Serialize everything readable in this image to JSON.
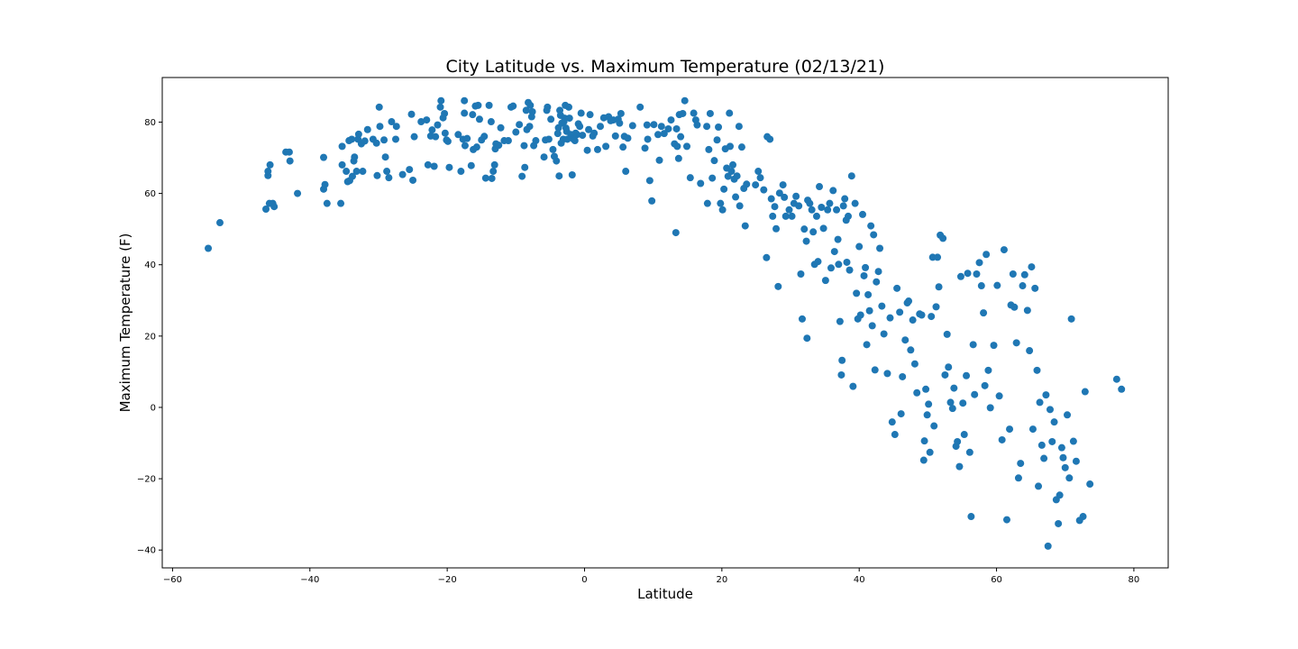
{
  "chart_data": {
    "type": "scatter",
    "title": "City Latitude vs. Maximum Temperature (02/13/21)",
    "xlabel": "Latitude",
    "ylabel": "Maximum Temperature (F)",
    "xlim": [
      -61.5,
      85
    ],
    "ylim": [
      -45,
      92.5
    ],
    "xticks": [
      -60,
      -40,
      -20,
      0,
      20,
      40,
      60,
      80
    ],
    "yticks": [
      -40,
      -20,
      0,
      20,
      40,
      60,
      80
    ],
    "xtick_labels": [
      "−60",
      "−40",
      "−20",
      "0",
      "20",
      "40",
      "60",
      "80"
    ],
    "ytick_labels": [
      "−40",
      "−20",
      "0",
      "20",
      "40",
      "60",
      "80"
    ],
    "grid": false,
    "marker_color": "#1f77b4",
    "points": [
      [
        -54.8,
        44.6
      ],
      [
        -53.1,
        51.8
      ],
      [
        -46.4,
        55.6
      ],
      [
        -46.1,
        65
      ],
      [
        -46.1,
        66.2
      ],
      [
        -45.9,
        57.2
      ],
      [
        -45.8,
        68
      ],
      [
        -45.4,
        57.2
      ],
      [
        -45.2,
        56.3
      ],
      [
        -43.5,
        71.6
      ],
      [
        -43,
        71.6
      ],
      [
        -42.9,
        69.1
      ],
      [
        -41.8,
        60
      ],
      [
        -38,
        61.2
      ],
      [
        -38,
        70.1
      ],
      [
        -37.8,
        62.5
      ],
      [
        -37.5,
        57.2
      ],
      [
        -35.5,
        57.2
      ],
      [
        -35.3,
        68
      ],
      [
        -35.3,
        73.2
      ],
      [
        -34.7,
        66.2
      ],
      [
        -34.5,
        63.3
      ],
      [
        -34.3,
        74.8
      ],
      [
        -34.2,
        63.6
      ],
      [
        -33.9,
        75.2
      ],
      [
        -33.8,
        64.8
      ],
      [
        -33.6,
        69.1
      ],
      [
        -33.5,
        70.2
      ],
      [
        -33.2,
        66.2
      ],
      [
        -33,
        75.2
      ],
      [
        -32.9,
        76.6
      ],
      [
        -32.5,
        73.9
      ],
      [
        -32.3,
        66.2
      ],
      [
        -32,
        74.7
      ],
      [
        -31.6,
        77.9
      ],
      [
        -30.8,
        75.2
      ],
      [
        -30.3,
        74.1
      ],
      [
        -30.2,
        65
      ],
      [
        -29.9,
        84.2
      ],
      [
        -29.8,
        78.8
      ],
      [
        -29.2,
        75
      ],
      [
        -29,
        70.2
      ],
      [
        -28.8,
        66.2
      ],
      [
        -28.5,
        64.4
      ],
      [
        -28.1,
        80.1
      ],
      [
        -27.5,
        75.2
      ],
      [
        -27.4,
        78.8
      ],
      [
        -26.5,
        65.3
      ],
      [
        -25.5,
        66.7
      ],
      [
        -25.2,
        82.2
      ],
      [
        -25,
        63.7
      ],
      [
        -24.8,
        75.9
      ],
      [
        -23.8,
        80.1
      ],
      [
        -23,
        80.6
      ],
      [
        -22.8,
        68
      ],
      [
        -22.4,
        76.1
      ],
      [
        -22.2,
        77.8
      ],
      [
        -21.9,
        67.6
      ],
      [
        -21.7,
        75.9
      ],
      [
        -21.4,
        79.2
      ],
      [
        -21,
        84.2
      ],
      [
        -20.9,
        86
      ],
      [
        -20.6,
        81.2
      ],
      [
        -20.4,
        82.4
      ],
      [
        -20.3,
        76.9
      ],
      [
        -20.1,
        75
      ],
      [
        -19.9,
        74.6
      ],
      [
        -19.7,
        67.3
      ],
      [
        -18.4,
        76.5
      ],
      [
        -18,
        66.2
      ],
      [
        -17.7,
        75.2
      ],
      [
        -17.5,
        86
      ],
      [
        -17.5,
        82.5
      ],
      [
        -17.4,
        73.4
      ],
      [
        -17.1,
        75.4
      ],
      [
        -16.5,
        67.8
      ],
      [
        -16.3,
        82.1
      ],
      [
        -16.2,
        72.3
      ],
      [
        -15.9,
        84.5
      ],
      [
        -15.7,
        73
      ],
      [
        -15.5,
        84.7
      ],
      [
        -15.3,
        80.8
      ],
      [
        -15,
        75
      ],
      [
        -14.6,
        76
      ],
      [
        -14.4,
        64.3
      ],
      [
        -13.9,
        84.7
      ],
      [
        -13.6,
        80.1
      ],
      [
        -13.5,
        64.2
      ],
      [
        -13.3,
        66.2
      ],
      [
        -13.1,
        68
      ],
      [
        -13,
        72.5
      ],
      [
        -12.9,
        73.9
      ],
      [
        -12.5,
        73.5
      ],
      [
        -12.2,
        78.4
      ],
      [
        -11.7,
        74.8
      ],
      [
        -11.1,
        74.8
      ],
      [
        -10.7,
        84.2
      ],
      [
        -10.4,
        84.5
      ],
      [
        -10,
        77.2
      ],
      [
        -9.5,
        79.3
      ],
      [
        -9.1,
        64.8
      ],
      [
        -8.8,
        73.4
      ],
      [
        -8.7,
        67.3
      ],
      [
        -8.5,
        83.3
      ],
      [
        -8.4,
        77.9
      ],
      [
        -8.2,
        85.5
      ],
      [
        -8,
        78.8
      ],
      [
        -7.9,
        84.7
      ],
      [
        -7.7,
        81.5
      ],
      [
        -7.6,
        82.9
      ],
      [
        -7.4,
        73.4
      ],
      [
        -7.1,
        74.8
      ],
      [
        -5.9,
        70.2
      ],
      [
        -5.7,
        75
      ],
      [
        -5.5,
        83.3
      ],
      [
        -5.4,
        84.2
      ],
      [
        -5.2,
        75.2
      ],
      [
        -4.9,
        80.8
      ],
      [
        -4.6,
        72.3
      ],
      [
        -4.4,
        70.4
      ],
      [
        -4.1,
        69.1
      ],
      [
        -3.9,
        76.8
      ],
      [
        -3.8,
        78.4
      ],
      [
        -3.7,
        64.9
      ],
      [
        -3.6,
        83.3
      ],
      [
        -3.5,
        81.9
      ],
      [
        -3.4,
        74.1
      ],
      [
        -3.3,
        79.7
      ],
      [
        -3.1,
        75.2
      ],
      [
        -3,
        80.1
      ],
      [
        -2.9,
        81.1
      ],
      [
        -2.8,
        84.7
      ],
      [
        -2.7,
        78.3
      ],
      [
        -2.6,
        77.4
      ],
      [
        -2.5,
        75.2
      ],
      [
        -2.3,
        84.2
      ],
      [
        -2.2,
        81.1
      ],
      [
        -2,
        76.5
      ],
      [
        -1.8,
        65.2
      ],
      [
        -1.6,
        75.2
      ],
      [
        -1.4,
        74.8
      ],
      [
        -1.3,
        76.9
      ],
      [
        -1.1,
        76.5
      ],
      [
        -0.9,
        79.5
      ],
      [
        -0.7,
        78.8
      ],
      [
        -0.5,
        82.5
      ],
      [
        -0.3,
        76.3
      ],
      [
        0.4,
        72.1
      ],
      [
        0.6,
        77.9
      ],
      [
        0.8,
        82.1
      ],
      [
        1.2,
        76.1
      ],
      [
        1.4,
        76.9
      ],
      [
        1.9,
        72.3
      ],
      [
        2.3,
        78.8
      ],
      [
        2.8,
        81.2
      ],
      [
        3.1,
        73.2
      ],
      [
        3.5,
        81.5
      ],
      [
        3.8,
        80.4
      ],
      [
        4.2,
        80.6
      ],
      [
        4.5,
        76.1
      ],
      [
        4.9,
        80.8
      ],
      [
        5.1,
        79.7
      ],
      [
        5.3,
        82.4
      ],
      [
        5.6,
        73
      ],
      [
        5.8,
        76
      ],
      [
        6,
        66.2
      ],
      [
        6.3,
        75.5
      ],
      [
        7,
        79
      ],
      [
        8.1,
        84.2
      ],
      [
        8.8,
        72.7
      ],
      [
        9.1,
        79.2
      ],
      [
        9.2,
        75.2
      ],
      [
        9.5,
        63.6
      ],
      [
        9.8,
        57.9
      ],
      [
        10.1,
        79.3
      ],
      [
        10.7,
        76.5
      ],
      [
        10.9,
        69.3
      ],
      [
        11.2,
        78.8
      ],
      [
        11.6,
        76.8
      ],
      [
        12.2,
        78.1
      ],
      [
        12.6,
        80.6
      ],
      [
        13.1,
        73.9
      ],
      [
        13.3,
        49
      ],
      [
        13.4,
        78.1
      ],
      [
        13.5,
        73.2
      ],
      [
        13.7,
        69.8
      ],
      [
        13.8,
        82.1
      ],
      [
        14,
        75.9
      ],
      [
        14.3,
        82.4
      ],
      [
        14.6,
        86
      ],
      [
        14.9,
        73.2
      ],
      [
        15.4,
        64.4
      ],
      [
        15.9,
        82.5
      ],
      [
        16.2,
        80.6
      ],
      [
        16.4,
        79.2
      ],
      [
        16.9,
        62.8
      ],
      [
        17.8,
        78.8
      ],
      [
        17.9,
        57.2
      ],
      [
        18.1,
        72.3
      ],
      [
        18.3,
        82.4
      ],
      [
        18.6,
        64.3
      ],
      [
        18.9,
        69.2
      ],
      [
        19.3,
        75
      ],
      [
        19.5,
        78.6
      ],
      [
        19.8,
        57.2
      ],
      [
        20.1,
        55.4
      ],
      [
        20.3,
        61.2
      ],
      [
        20.5,
        72.5
      ],
      [
        20.7,
        67.1
      ],
      [
        20.9,
        64.8
      ],
      [
        21.1,
        82.5
      ],
      [
        21.2,
        73.2
      ],
      [
        21.4,
        66.2
      ],
      [
        21.6,
        68
      ],
      [
        21.8,
        64
      ],
      [
        22,
        59
      ],
      [
        22.2,
        64.9
      ],
      [
        22.5,
        78.8
      ],
      [
        22.6,
        56.5
      ],
      [
        22.9,
        73
      ],
      [
        23.2,
        61.4
      ],
      [
        23.4,
        50.9
      ],
      [
        23.6,
        62.6
      ],
      [
        24.9,
        62.4
      ],
      [
        25.3,
        66.2
      ],
      [
        25.6,
        64.4
      ],
      [
        26.1,
        61
      ],
      [
        26.5,
        42
      ],
      [
        26.6,
        75.9
      ],
      [
        27,
        75.2
      ],
      [
        27.2,
        58.5
      ],
      [
        27.4,
        53.6
      ],
      [
        27.7,
        56.3
      ],
      [
        27.9,
        50.1
      ],
      [
        28.2,
        33.9
      ],
      [
        28.4,
        60.1
      ],
      [
        28.9,
        62.4
      ],
      [
        29.1,
        58.9
      ],
      [
        29.3,
        53.6
      ],
      [
        29.8,
        55.4
      ],
      [
        30.2,
        53.6
      ],
      [
        30.5,
        57.2
      ],
      [
        30.8,
        59.2
      ],
      [
        31.2,
        56.5
      ],
      [
        31.5,
        37.4
      ],
      [
        31.7,
        24.8
      ],
      [
        32,
        50
      ],
      [
        32.3,
        46.6
      ],
      [
        32.4,
        19.4
      ],
      [
        32.5,
        58.1
      ],
      [
        32.8,
        57.2
      ],
      [
        33.1,
        55.4
      ],
      [
        33.3,
        49.2
      ],
      [
        33.5,
        40.1
      ],
      [
        33.8,
        53.6
      ],
      [
        34,
        40.9
      ],
      [
        34.2,
        61.9
      ],
      [
        34.5,
        56.1
      ],
      [
        34.8,
        50.2
      ],
      [
        35.1,
        35.6
      ],
      [
        35.4,
        55.4
      ],
      [
        35.7,
        57.2
      ],
      [
        35.9,
        39.1
      ],
      [
        36.2,
        60.8
      ],
      [
        36.4,
        43.7
      ],
      [
        36.7,
        55.4
      ],
      [
        36.9,
        47.1
      ],
      [
        37,
        40.1
      ],
      [
        37.2,
        24.1
      ],
      [
        37.4,
        9.1
      ],
      [
        37.5,
        13.2
      ],
      [
        37.7,
        56.5
      ],
      [
        37.9,
        58.5
      ],
      [
        38.1,
        52.5
      ],
      [
        38.2,
        40.7
      ],
      [
        38.4,
        53.6
      ],
      [
        38.6,
        38.5
      ],
      [
        38.9,
        64.9
      ],
      [
        39.1,
        5.9
      ],
      [
        39.4,
        57.2
      ],
      [
        39.6,
        32
      ],
      [
        39.8,
        24.8
      ],
      [
        40,
        45.1
      ],
      [
        40.2,
        25.9
      ],
      [
        40.5,
        54.1
      ],
      [
        40.7,
        36.9
      ],
      [
        40.9,
        39.2
      ],
      [
        41.1,
        17.6
      ],
      [
        41.3,
        31.6
      ],
      [
        41.5,
        27.1
      ],
      [
        41.7,
        50.9
      ],
      [
        41.9,
        22.9
      ],
      [
        42.1,
        48.4
      ],
      [
        42.3,
        10.5
      ],
      [
        42.5,
        35.2
      ],
      [
        42.8,
        38.1
      ],
      [
        43,
        44.6
      ],
      [
        43.3,
        28.4
      ],
      [
        43.6,
        20.6
      ],
      [
        44.1,
        9.5
      ],
      [
        44.5,
        25.1
      ],
      [
        44.8,
        -4.1
      ],
      [
        45.2,
        -7.6
      ],
      [
        45.5,
        33.4
      ],
      [
        45.9,
        26.7
      ],
      [
        46.1,
        -1.8
      ],
      [
        46.3,
        8.6
      ],
      [
        46.7,
        18.9
      ],
      [
        47,
        29.3
      ],
      [
        47.2,
        29.8
      ],
      [
        47.5,
        16.1
      ],
      [
        47.8,
        24.5
      ],
      [
        48.1,
        12.2
      ],
      [
        48.4,
        4.1
      ],
      [
        48.8,
        26.2
      ],
      [
        49.1,
        25.9
      ],
      [
        49.4,
        -14.8
      ],
      [
        49.5,
        -9.4
      ],
      [
        49.7,
        5.1
      ],
      [
        49.9,
        -2.1
      ],
      [
        50.1,
        0.9
      ],
      [
        50.3,
        -12.6
      ],
      [
        50.5,
        25.5
      ],
      [
        50.7,
        42.1
      ],
      [
        50.9,
        -5.2
      ],
      [
        51.2,
        28.2
      ],
      [
        51.4,
        42.1
      ],
      [
        51.6,
        33.8
      ],
      [
        51.8,
        48.3
      ],
      [
        52.2,
        47.4
      ],
      [
        52.5,
        9.1
      ],
      [
        52.8,
        20.5
      ],
      [
        53,
        11.3
      ],
      [
        53.3,
        1.4
      ],
      [
        53.6,
        -0.3
      ],
      [
        53.8,
        5.4
      ],
      [
        54.1,
        -10.9
      ],
      [
        54.3,
        -9.6
      ],
      [
        54.6,
        -16.6
      ],
      [
        54.8,
        36.7
      ],
      [
        55.1,
        1.2
      ],
      [
        55.3,
        -7.6
      ],
      [
        55.6,
        8.9
      ],
      [
        55.8,
        37.6
      ],
      [
        56.1,
        -12.6
      ],
      [
        56.3,
        -30.6
      ],
      [
        56.6,
        17.6
      ],
      [
        56.8,
        3.6
      ],
      [
        57.1,
        37.4
      ],
      [
        57.5,
        40.6
      ],
      [
        57.8,
        34.1
      ],
      [
        58.1,
        26.5
      ],
      [
        58.3,
        6.1
      ],
      [
        58.5,
        42.9
      ],
      [
        58.8,
        10.4
      ],
      [
        59.1,
        -0.1
      ],
      [
        59.6,
        17.4
      ],
      [
        60.1,
        34.2
      ],
      [
        60.4,
        3.2
      ],
      [
        60.8,
        -9.1
      ],
      [
        61.1,
        44.2
      ],
      [
        61.5,
        -31.5
      ],
      [
        61.9,
        -6.1
      ],
      [
        62.1,
        28.7
      ],
      [
        62.4,
        37.4
      ],
      [
        62.6,
        28.1
      ],
      [
        62.9,
        18.1
      ],
      [
        63.2,
        -19.8
      ],
      [
        63.5,
        -15.7
      ],
      [
        63.8,
        34.1
      ],
      [
        64.1,
        37.2
      ],
      [
        64.5,
        27.2
      ],
      [
        64.8,
        15.9
      ],
      [
        65.1,
        39.4
      ],
      [
        65.3,
        -6.1
      ],
      [
        65.6,
        33.4
      ],
      [
        65.9,
        10.4
      ],
      [
        66.1,
        -22.1
      ],
      [
        66.3,
        1.4
      ],
      [
        66.6,
        -10.6
      ],
      [
        66.9,
        -14.3
      ],
      [
        67.2,
        3.5
      ],
      [
        67.5,
        -38.9
      ],
      [
        67.8,
        -0.6
      ],
      [
        68.1,
        -9.6
      ],
      [
        68.4,
        -4.1
      ],
      [
        68.7,
        -25.9
      ],
      [
        69,
        -32.6
      ],
      [
        69.2,
        -24.6
      ],
      [
        69.5,
        -11.3
      ],
      [
        69.7,
        -14.1
      ],
      [
        70,
        -16.9
      ],
      [
        70.3,
        -2.1
      ],
      [
        70.6,
        -19.8
      ],
      [
        70.9,
        24.8
      ],
      [
        71.2,
        -9.5
      ],
      [
        71.6,
        -15.1
      ],
      [
        72.1,
        -31.7
      ],
      [
        72.6,
        -30.6
      ],
      [
        72.9,
        4.4
      ],
      [
        73.6,
        -21.5
      ],
      [
        77.5,
        7.9
      ],
      [
        78.2,
        5.1
      ]
    ]
  }
}
